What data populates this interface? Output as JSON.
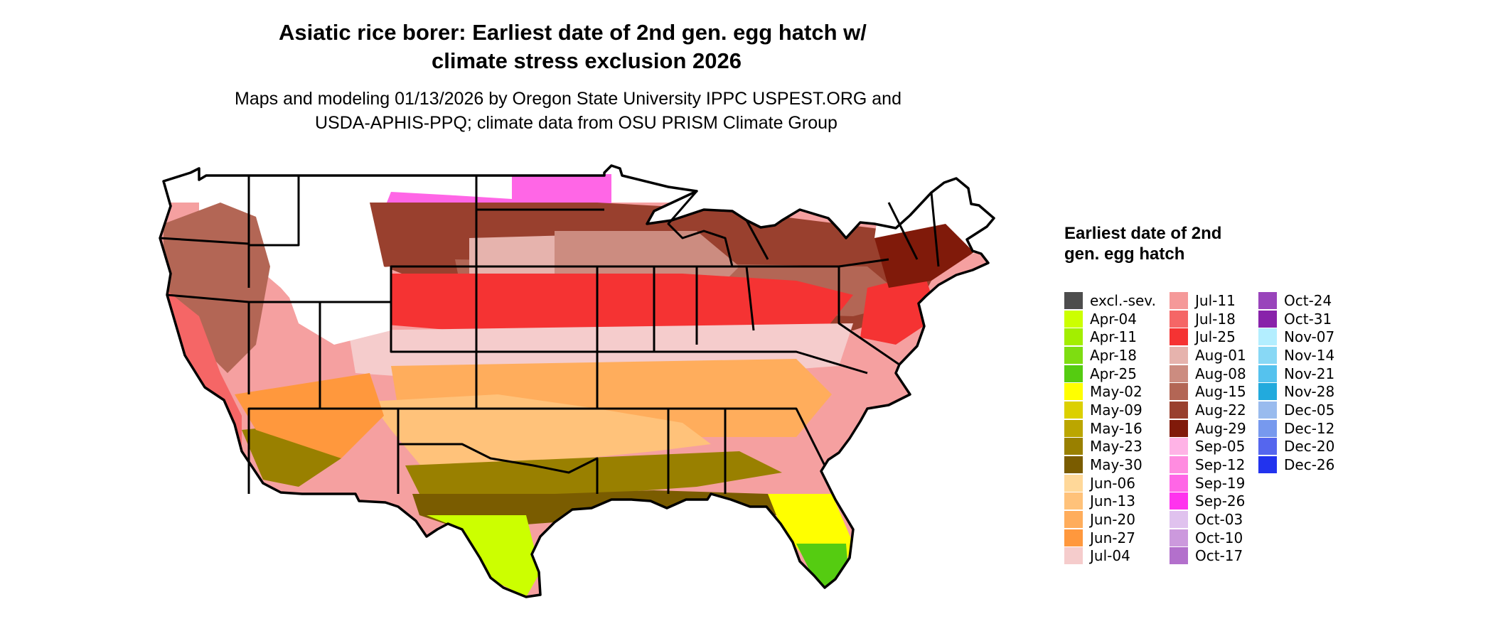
{
  "header": {
    "title_line1": "Asiatic rice borer: Earliest date of 2nd gen. egg hatch w/",
    "title_line2": "climate stress exclusion 2026",
    "subtitle_line1": "Maps and modeling 01/13/2026 by Oregon State University IPPC USPEST.ORG and",
    "subtitle_line2": "USDA-APHIS-PPQ; climate data from OSU PRISM Climate Group"
  },
  "legend": {
    "title": "Earliest date of 2nd gen. egg hatch",
    "columns": [
      [
        {
          "label": "excl.-sev.",
          "color": "#4d4d4d"
        },
        {
          "label": "Apr-04",
          "color": "#ccff00"
        },
        {
          "label": "Apr-11",
          "color": "#a3ee00"
        },
        {
          "label": "Apr-18",
          "color": "#7edd11"
        },
        {
          "label": "Apr-25",
          "color": "#55cc11"
        },
        {
          "label": "May-02",
          "color": "#ffff00"
        },
        {
          "label": "May-09",
          "color": "#dcd000"
        },
        {
          "label": "May-16",
          "color": "#bba600"
        },
        {
          "label": "May-23",
          "color": "#998000"
        },
        {
          "label": "May-30",
          "color": "#7a5c00"
        },
        {
          "label": "Jun-06",
          "color": "#ffd899"
        },
        {
          "label": "Jun-13",
          "color": "#ffc27a"
        },
        {
          "label": "Jun-20",
          "color": "#ffad5c"
        },
        {
          "label": "Jun-27",
          "color": "#ff983d"
        },
        {
          "label": "Jul-04",
          "color": "#f5cccc"
        }
      ],
      [
        {
          "label": "Jul-11",
          "color": "#f59999"
        },
        {
          "label": "Jul-18",
          "color": "#f56666"
        },
        {
          "label": "Jul-25",
          "color": "#f53333"
        },
        {
          "label": "Aug-01",
          "color": "#e6b3ad"
        },
        {
          "label": "Aug-08",
          "color": "#cc8c80"
        },
        {
          "label": "Aug-15",
          "color": "#b36655"
        },
        {
          "label": "Aug-22",
          "color": "#99402e"
        },
        {
          "label": "Aug-29",
          "color": "#801a0a"
        },
        {
          "label": "Sep-05",
          "color": "#ffb3e6"
        },
        {
          "label": "Sep-12",
          "color": "#ff8ce0"
        },
        {
          "label": "Sep-19",
          "color": "#ff66e6"
        },
        {
          "label": "Sep-26",
          "color": "#ff33ee"
        },
        {
          "label": "Oct-03",
          "color": "#e0c2ee"
        },
        {
          "label": "Oct-10",
          "color": "#cc99dd"
        },
        {
          "label": "Oct-17",
          "color": "#b370cc"
        }
      ],
      [
        {
          "label": "Oct-24",
          "color": "#9944bb"
        },
        {
          "label": "Oct-31",
          "color": "#8822aa"
        },
        {
          "label": "Nov-07",
          "color": "#b3eeff"
        },
        {
          "label": "Nov-14",
          "color": "#88d8f5"
        },
        {
          "label": "Nov-21",
          "color": "#55c2ee"
        },
        {
          "label": "Nov-28",
          "color": "#22aadd"
        },
        {
          "label": "Dec-05",
          "color": "#99bbee"
        },
        {
          "label": "Dec-12",
          "color": "#7799ee"
        },
        {
          "label": "Dec-20",
          "color": "#5566ee"
        },
        {
          "label": "Dec-26",
          "color": "#2233ee"
        }
      ]
    ]
  }
}
